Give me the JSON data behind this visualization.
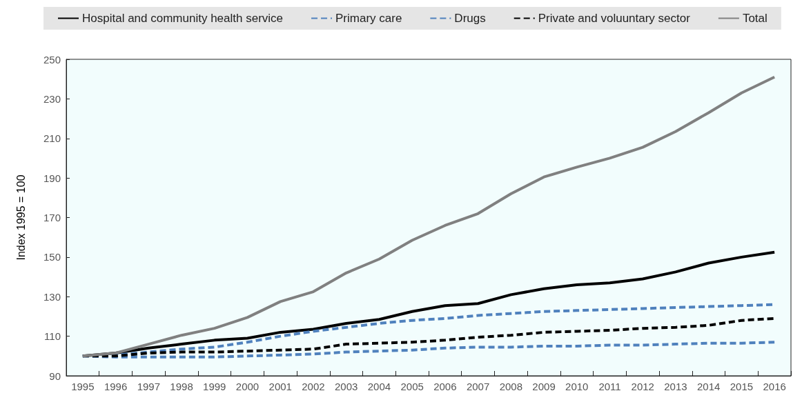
{
  "chart_data": {
    "type": "line",
    "ylabel": "Index 1995 = 100",
    "categories": [
      "1995",
      "1996",
      "1997",
      "1998",
      "1999",
      "2000",
      "2001",
      "2002",
      "2003",
      "2004",
      "2005",
      "2006",
      "2007",
      "2008",
      "2009",
      "2010",
      "2011",
      "2012",
      "2013",
      "2014",
      "2015",
      "2016"
    ],
    "ylim": [
      90,
      250
    ],
    "yticks": [
      90,
      110,
      130,
      150,
      170,
      190,
      210,
      230,
      250
    ],
    "grid": false,
    "legend": "top",
    "marker": "none",
    "series": [
      {
        "name": "Hospital and community health service",
        "color": "#000000",
        "line_style": "solid",
        "values": [
          100,
          101.5,
          104,
          106,
          108,
          109,
          112,
          113.5,
          116.5,
          118.5,
          122.5,
          125.5,
          126.5,
          131,
          134,
          136,
          137,
          139,
          142.5,
          147,
          150,
          152.5
        ]
      },
      {
        "name": "Primary care",
        "color": "#4f81bd",
        "line_style": "dashed",
        "values": [
          100,
          99.5,
          99.5,
          99.5,
          99.5,
          100,
          100.5,
          101,
          102,
          102.5,
          103,
          104,
          104.5,
          104.5,
          105,
          105,
          105.5,
          105.5,
          106,
          106.5,
          106.5,
          107
        ]
      },
      {
        "name": "Drugs",
        "color": "#4f81bd",
        "line_style": "dashed",
        "values": [
          100,
          100.5,
          102,
          103.5,
          104.5,
          107,
          110,
          112.5,
          114.5,
          116.5,
          118,
          119,
          120.5,
          121.5,
          122.5,
          123,
          123.5,
          124,
          124.5,
          125,
          125.5,
          126
        ]
      },
      {
        "name": "Private and voluuntary sector",
        "color": "#000000",
        "line_style": "dashed",
        "values": [
          100,
          100,
          101.5,
          102,
          102,
          102.5,
          103,
          103.5,
          106,
          106.5,
          107,
          108,
          109.5,
          110.5,
          112,
          112.5,
          113,
          114,
          114.5,
          115.5,
          118,
          119
        ]
      },
      {
        "name": "Total",
        "color": "#808080",
        "line_style": "solid",
        "values": [
          100,
          101.5,
          106,
          110.5,
          114,
          119.5,
          127.5,
          132.5,
          142,
          149,
          158.5,
          166,
          172,
          182,
          190.5,
          195.5,
          200,
          205.5,
          213.5,
          223,
          233,
          241
        ]
      }
    ]
  }
}
